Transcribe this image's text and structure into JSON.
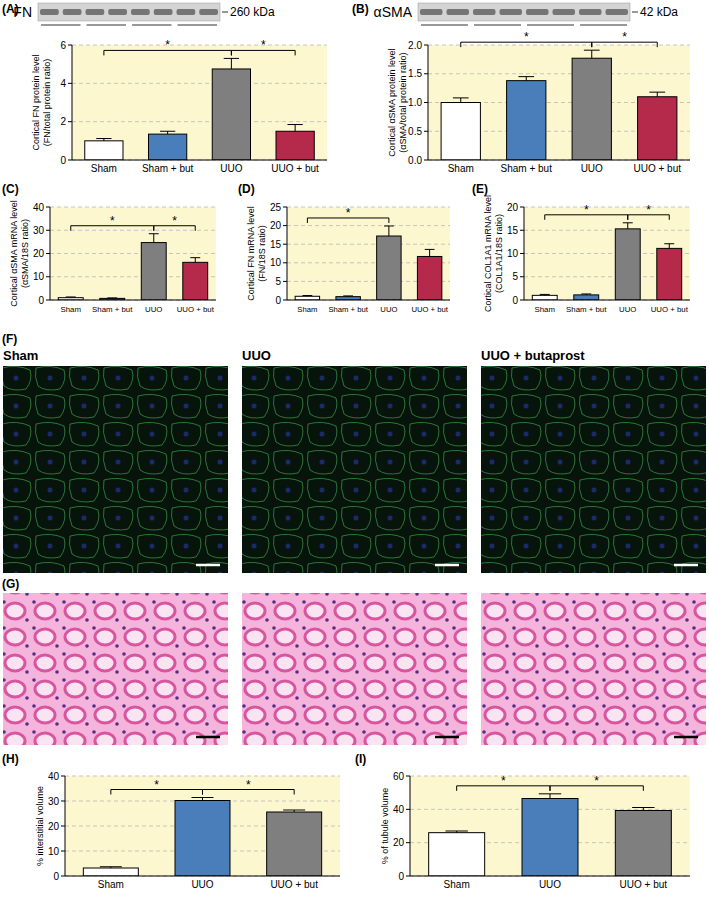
{
  "chart_data": [
    {
      "type": "bar",
      "title": "(A)",
      "blot": {
        "label": "FN",
        "size": "260 kDa"
      },
      "ylabel": [
        "Cortical FN protein level",
        "(FN/total protein ratio)"
      ],
      "categories": [
        "Sham",
        "Sham + but",
        "UUO",
        "UUO + but"
      ],
      "values": [
        1.0,
        1.35,
        4.75,
        1.5
      ],
      "errors": [
        0.12,
        0.15,
        0.55,
        0.35
      ],
      "colors": [
        "#ffffff",
        "#4a7ebb",
        "#7f7f7f",
        "#b5294a"
      ],
      "ylim": [
        0,
        6
      ],
      "yticks": [
        0,
        2,
        4,
        6
      ],
      "grid": true,
      "annotations": [
        {
          "from": 0,
          "to": 2,
          "label": "*"
        },
        {
          "from": 2,
          "to": 3,
          "label": "*"
        }
      ]
    },
    {
      "type": "bar",
      "title": "(B)",
      "blot": {
        "label": "αSMA",
        "size": "42 kDa"
      },
      "ylabel": [
        "Cortical αSMA protein level",
        "(αSMA/total protein ratio)"
      ],
      "categories": [
        "Sham",
        "Sham + but",
        "UUO",
        "UUO + but"
      ],
      "values": [
        1.0,
        1.38,
        1.77,
        1.1
      ],
      "errors": [
        0.08,
        0.07,
        0.14,
        0.08
      ],
      "colors": [
        "#ffffff",
        "#4a7ebb",
        "#7f7f7f",
        "#b5294a"
      ],
      "ylim": [
        0,
        2
      ],
      "yticks": [
        {
          "value": 0,
          "label": "0.0"
        },
        0.5,
        {
          "value": 1,
          "label": "1.0"
        },
        1.5,
        {
          "value": 2,
          "label": "2.0"
        }
      ],
      "grid": true,
      "annotations": [
        {
          "from": 0,
          "to": 2,
          "label": "*"
        },
        {
          "from": 2,
          "to": 3,
          "label": "*"
        }
      ]
    },
    {
      "type": "bar",
      "title": "(C)",
      "ylabel": [
        "Cortical αSMA mRNA level",
        "(αSMA/18S ratio)"
      ],
      "categories": [
        "Sham",
        "Sham + but",
        "UUO",
        "UUO + but"
      ],
      "values": [
        1.0,
        0.7,
        24.7,
        16.2
      ],
      "errors": [
        0.3,
        0.2,
        3.8,
        2.0
      ],
      "colors": [
        "#ffffff",
        "#4a7ebb",
        "#7f7f7f",
        "#b5294a"
      ],
      "ylim": [
        0,
        40
      ],
      "yticks": [
        0,
        10,
        20,
        30,
        40
      ],
      "grid": true,
      "annotations": [
        {
          "from": 0,
          "to": 2,
          "label": "*"
        },
        {
          "from": 2,
          "to": 3,
          "label": "*"
        }
      ]
    },
    {
      "type": "bar",
      "title": "(D)",
      "ylabel": [
        "Cortical FN mRNA level",
        "(FN/18S ratio)"
      ],
      "categories": [
        "Sham",
        "Sham + but",
        "UUO",
        "UUO + but"
      ],
      "values": [
        1.0,
        0.9,
        17.2,
        11.7
      ],
      "errors": [
        0.2,
        0.2,
        2.7,
        1.9
      ],
      "colors": [
        "#ffffff",
        "#4a7ebb",
        "#7f7f7f",
        "#b5294a"
      ],
      "ylim": [
        0,
        25
      ],
      "yticks": [
        0,
        5,
        10,
        15,
        20,
        25
      ],
      "grid": true,
      "annotations": [
        {
          "from": 0,
          "to": 2,
          "label": "*"
        }
      ]
    },
    {
      "type": "bar",
      "title": "(E)",
      "ylabel": [
        "Cortical COL1A1 mRNA level",
        "(COL1A1/18S ratio)"
      ],
      "categories": [
        "Sham",
        "Sham + but",
        "UUO",
        "UUO + but"
      ],
      "values": [
        1.0,
        1.1,
        15.3,
        11.1
      ],
      "errors": [
        0.2,
        0.2,
        1.3,
        1.0
      ],
      "colors": [
        "#ffffff",
        "#4a7ebb",
        "#7f7f7f",
        "#b5294a"
      ],
      "ylim": [
        0,
        20
      ],
      "yticks": [
        0,
        5,
        10,
        15,
        20
      ],
      "grid": true,
      "annotations": [
        {
          "from": 0,
          "to": 2,
          "label": "*"
        },
        {
          "from": 2,
          "to": 3,
          "label": "*"
        }
      ]
    },
    {
      "type": "bar",
      "title": "(H)",
      "ylabel": [
        "% interstitial volume"
      ],
      "categories": [
        "Sham",
        "UUO",
        "UUO + but"
      ],
      "values": [
        3.2,
        30.2,
        25.6
      ],
      "errors": [
        0.5,
        1.2,
        0.8
      ],
      "colors": [
        "#ffffff",
        "#4a7ebb",
        "#7f7f7f"
      ],
      "ylim": [
        0,
        40
      ],
      "yticks": [
        0,
        10,
        20,
        30,
        40
      ],
      "grid": true,
      "annotations": [
        {
          "from": 0,
          "to": 1,
          "label": "*"
        },
        {
          "from": 1,
          "to": 2,
          "label": "*"
        }
      ]
    },
    {
      "type": "bar",
      "title": "(I)",
      "ylabel": [
        "% of tubule volume"
      ],
      "categories": [
        "Sham",
        "UUO",
        "UUO + but"
      ],
      "values": [
        26,
        46.5,
        39.3
      ],
      "errors": [
        1.0,
        2.8,
        1.8
      ],
      "colors": [
        "#ffffff",
        "#4a7ebb",
        "#7f7f7f"
      ],
      "ylim": [
        0,
        60
      ],
      "yticks": [
        0,
        20,
        40,
        60
      ],
      "grid": true,
      "annotations": [
        {
          "from": 0,
          "to": 1,
          "label": "*"
        },
        {
          "from": 1,
          "to": 2,
          "label": "*"
        }
      ]
    }
  ],
  "images": [
    {
      "label": "(F)",
      "titles": [
        "Sham",
        "UUO",
        "UUO + butaprost"
      ]
    },
    {
      "label": "(G)"
    }
  ]
}
